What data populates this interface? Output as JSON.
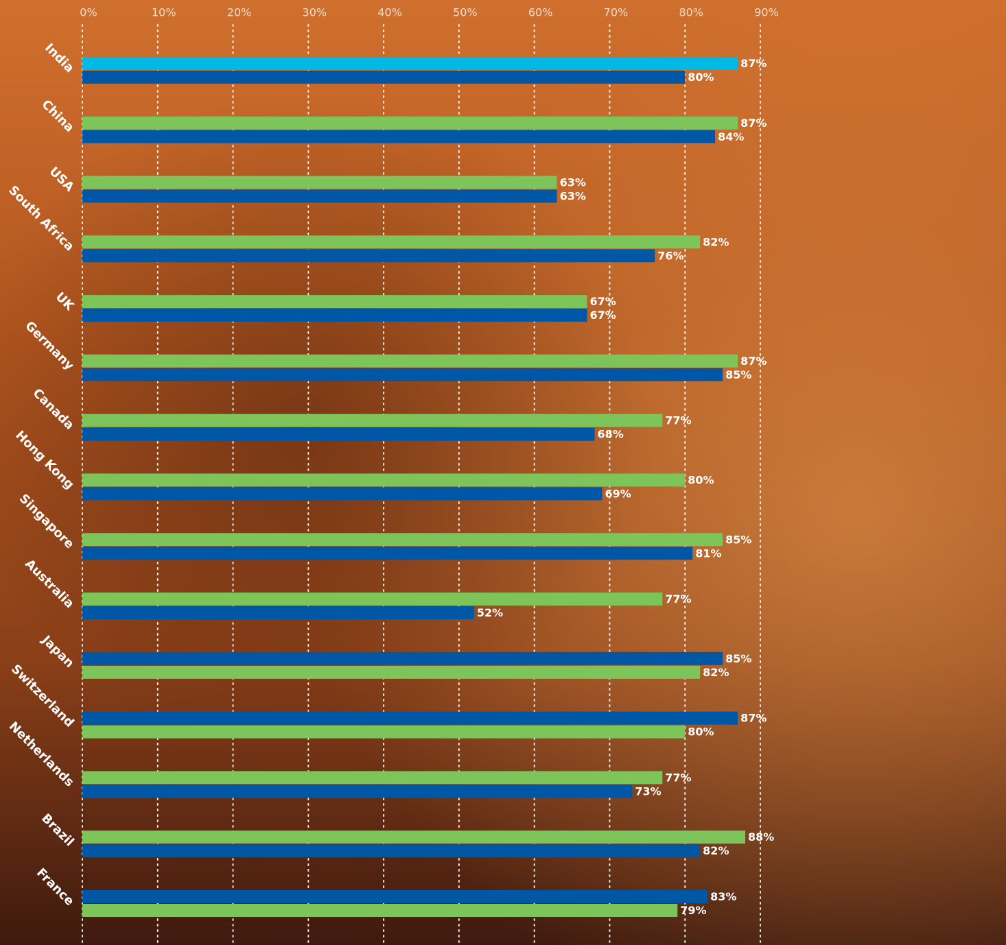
{
  "chart_data": {
    "type": "bar",
    "orientation": "horizontal",
    "categories": [
      "India",
      "China",
      "USA",
      "South Africa",
      "UK",
      "Germany",
      "Canada",
      "Hong Kong",
      "Singapore",
      "Australia",
      "Japan",
      "Switzerland",
      "Netherlands",
      "Brazil",
      "France"
    ],
    "series": [
      {
        "colors": [
          "#00b9e5",
          "#7dc45a",
          "#7dc45a",
          "#7dc45a",
          "#7dc45a",
          "#7dc45a",
          "#7dc45a",
          "#7dc45a",
          "#7dc45a",
          "#7dc45a",
          "#0057a6",
          "#0057a6",
          "#7dc45a",
          "#7dc45a",
          "#0057a6"
        ],
        "values": [
          87,
          87,
          63,
          82,
          67,
          87,
          77,
          80,
          85,
          77,
          85,
          87,
          77,
          88,
          83
        ],
        "value_labels": [
          "87%",
          "87%",
          "63%",
          "82%",
          "67%",
          "87%",
          "77%",
          "80%",
          "85%",
          "77%",
          "85%",
          "87%",
          "77%",
          "88%",
          "83%"
        ]
      },
      {
        "colors": [
          "#0057a6",
          "#0057a6",
          "#0057a6",
          "#0057a6",
          "#0057a6",
          "#0057a6",
          "#0057a6",
          "#0057a6",
          "#0057a6",
          "#0057a6",
          "#7dc45a",
          "#7dc45a",
          "#0057a6",
          "#0057a6",
          "#7dc45a"
        ],
        "values": [
          80,
          84,
          63,
          76,
          67,
          85,
          68,
          69,
          81,
          52,
          82,
          80,
          73,
          82,
          79
        ],
        "value_labels": [
          "80%",
          "84%",
          "63%",
          "76%",
          "67%",
          "85%",
          "68%",
          "69%",
          "81%",
          "52%",
          "82%",
          "80%",
          "73%",
          "82%",
          "79%"
        ]
      }
    ],
    "xlim": [
      0,
      90
    ],
    "xticks": [
      {
        "value": 0,
        "label": "0%"
      },
      {
        "value": 10,
        "label": "10%"
      },
      {
        "value": 20,
        "label": "20%"
      },
      {
        "value": 30,
        "label": "30%"
      },
      {
        "value": 40,
        "label": "40%"
      },
      {
        "value": 50,
        "label": "50%"
      },
      {
        "value": 60,
        "label": "60%"
      },
      {
        "value": 70,
        "label": "70%"
      },
      {
        "value": 80,
        "label": "80%"
      },
      {
        "value": 90,
        "label": "90%"
      }
    ],
    "grid": true
  }
}
